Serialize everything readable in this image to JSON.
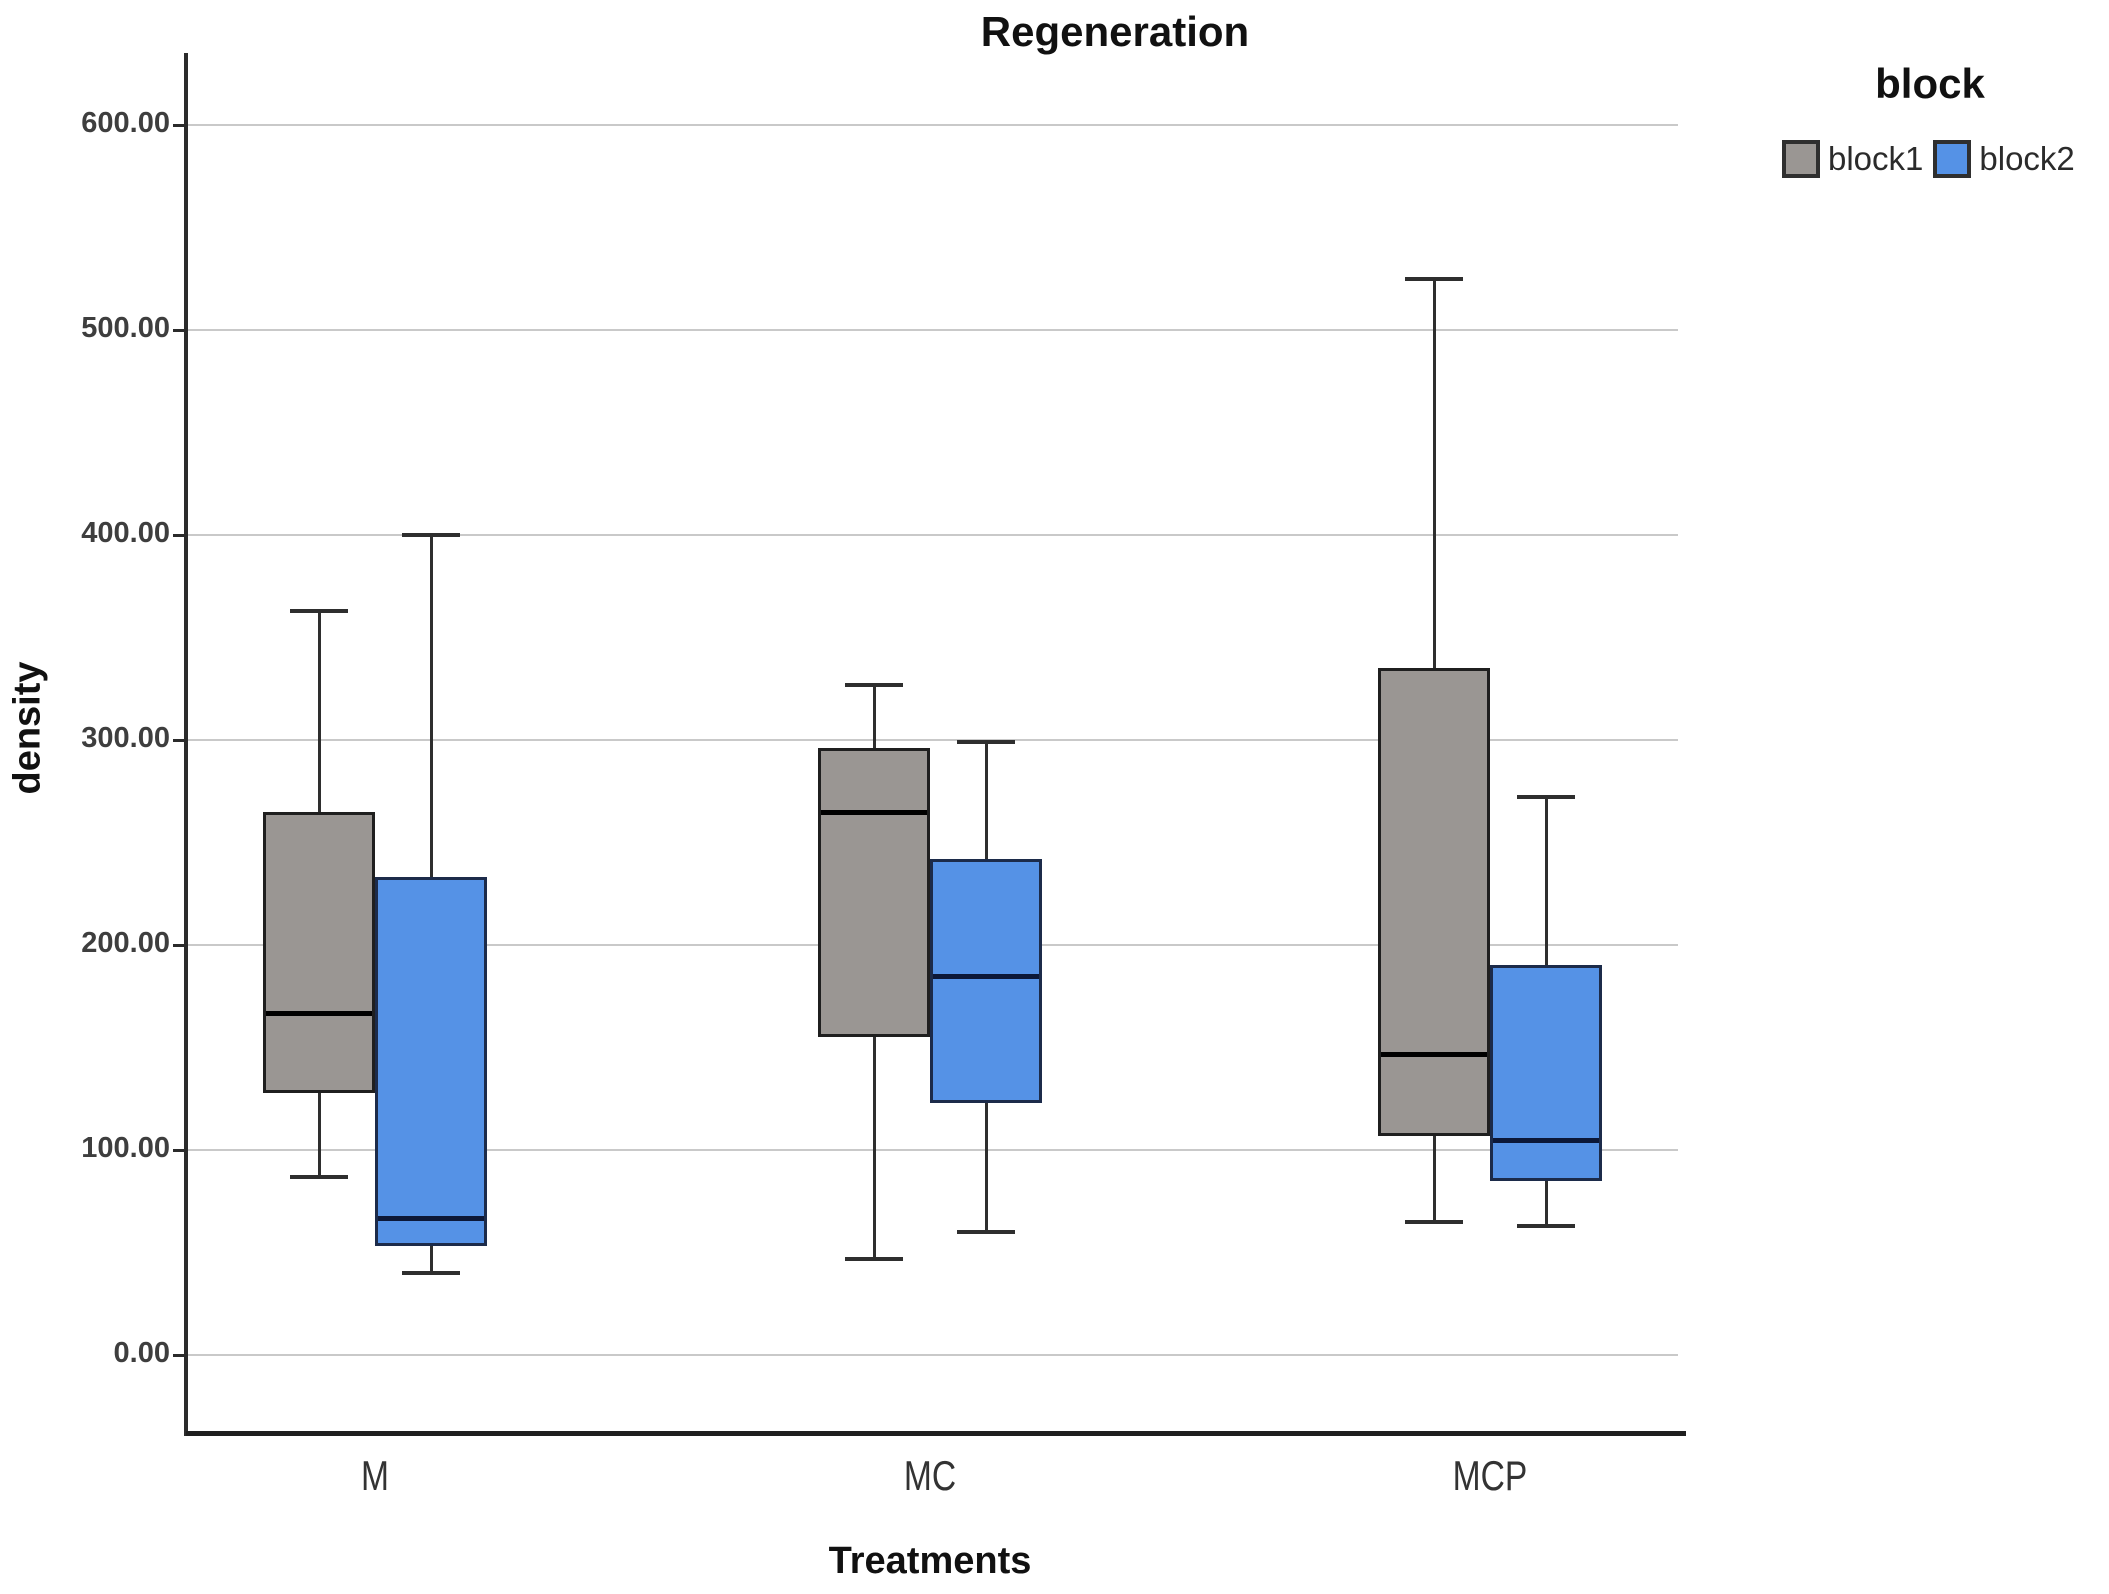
{
  "chart_data": {
    "type": "boxplot",
    "title": "Regeneration",
    "xlabel": "Treatments",
    "ylabel": "density",
    "legend_title": "block",
    "legend_position": "top-right",
    "grid": true,
    "categories": [
      "M",
      "MC",
      "MCP"
    ],
    "y_axis": {
      "tick_values": [
        600,
        500,
        400,
        300,
        200,
        100,
        0
      ],
      "tick_labels": [
        "600.00",
        "500.00",
        "400.00",
        "300.00",
        "200.00",
        "100.00",
        "0.00"
      ],
      "display_min": -38,
      "display_max": 635
    },
    "series": [
      {
        "name": "block1",
        "fill": "#9a9693",
        "border": "#1f1f1f",
        "median_color": "#000000",
        "boxes": [
          {
            "category": "M",
            "whisker_low": 87,
            "q1": 128,
            "median": 167,
            "q3": 265,
            "whisker_high": 363
          },
          {
            "category": "MC",
            "whisker_low": 47,
            "q1": 155,
            "median": 265,
            "q3": 296,
            "whisker_high": 327
          },
          {
            "category": "MCP",
            "whisker_low": 65,
            "q1": 107,
            "median": 147,
            "q3": 335,
            "whisker_high": 525
          }
        ]
      },
      {
        "name": "block2",
        "fill": "#5592e6",
        "border": "#1c2b4a",
        "median_color": "#0c1838",
        "boxes": [
          {
            "category": "M",
            "whisker_low": 40,
            "q1": 53,
            "median": 67,
            "q3": 233,
            "whisker_high": 400
          },
          {
            "category": "MC",
            "whisker_low": 60,
            "q1": 123,
            "median": 185,
            "q3": 242,
            "whisker_high": 299
          },
          {
            "category": "MCP",
            "whisker_low": 63,
            "q1": 85,
            "median": 105,
            "q3": 190,
            "whisker_high": 272
          }
        ]
      }
    ]
  }
}
